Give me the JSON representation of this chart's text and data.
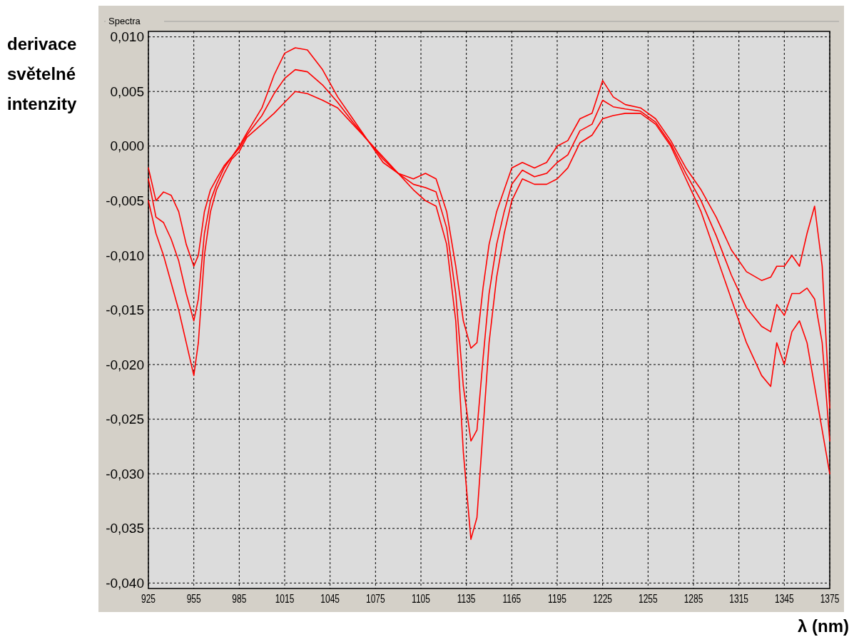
{
  "chart_data": {
    "type": "line",
    "title": "Spectra",
    "xlabel": "λ (nm)",
    "ylabel": "derivace světelné intenzity",
    "x": [
      925,
      930,
      935,
      940,
      945,
      950,
      955,
      958,
      962,
      966,
      970,
      975,
      980,
      985,
      990,
      1000,
      1008,
      1015,
      1022,
      1030,
      1040,
      1050,
      1060,
      1070,
      1080,
      1090,
      1100,
      1108,
      1115,
      1122,
      1128,
      1133,
      1138,
      1142,
      1146,
      1150,
      1155,
      1160,
      1165,
      1172,
      1180,
      1188,
      1195,
      1202,
      1210,
      1218,
      1225,
      1232,
      1240,
      1250,
      1260,
      1270,
      1280,
      1290,
      1300,
      1310,
      1320,
      1330,
      1336,
      1340,
      1345,
      1350,
      1355,
      1360,
      1365,
      1370,
      1375
    ],
    "series": [
      {
        "color": "#ff0000",
        "values": [
          -0.002,
          -0.005,
          -0.0042,
          -0.0045,
          -0.006,
          -0.009,
          -0.011,
          -0.01,
          -0.006,
          -0.004,
          -0.003,
          -0.0018,
          -0.001,
          0.0,
          0.0012,
          0.0035,
          0.0065,
          0.0085,
          0.009,
          0.0088,
          0.007,
          0.0045,
          0.0025,
          0.0005,
          -0.0015,
          -0.0025,
          -0.003,
          -0.0025,
          -0.003,
          -0.006,
          -0.011,
          -0.016,
          -0.0185,
          -0.018,
          -0.013,
          -0.009,
          -0.006,
          -0.004,
          -0.002,
          -0.0015,
          -0.002,
          -0.0015,
          0.0,
          0.0005,
          0.0025,
          0.003,
          0.006,
          0.0045,
          0.0038,
          0.0035,
          0.0025,
          0.0005,
          -0.002,
          -0.004,
          -0.0065,
          -0.0095,
          -0.0115,
          -0.0123,
          -0.012,
          -0.011,
          -0.011,
          -0.01,
          -0.011,
          -0.008,
          -0.0055,
          -0.011,
          -0.024
        ]
      },
      {
        "color": "#ff0000",
        "values": [
          -0.003,
          -0.0065,
          -0.007,
          -0.0085,
          -0.0105,
          -0.0135,
          -0.016,
          -0.014,
          -0.008,
          -0.005,
          -0.0035,
          -0.002,
          -0.001,
          -0.0002,
          0.001,
          0.0028,
          0.0048,
          0.0062,
          0.007,
          0.0068,
          0.0056,
          0.004,
          0.0022,
          0.0005,
          -0.0012,
          -0.0025,
          -0.0035,
          -0.0038,
          -0.0042,
          -0.0075,
          -0.0135,
          -0.022,
          -0.027,
          -0.026,
          -0.0195,
          -0.0135,
          -0.009,
          -0.006,
          -0.0035,
          -0.0022,
          -0.0028,
          -0.0025,
          -0.0015,
          -0.0008,
          0.0014,
          0.002,
          0.0042,
          0.0036,
          0.0034,
          0.0032,
          0.0022,
          0.0002,
          -0.0025,
          -0.005,
          -0.0082,
          -0.0118,
          -0.0148,
          -0.0165,
          -0.017,
          -0.0145,
          -0.0155,
          -0.0135,
          -0.0135,
          -0.013,
          -0.014,
          -0.018,
          -0.027
        ]
      },
      {
        "color": "#ff0000",
        "values": [
          -0.005,
          -0.008,
          -0.01,
          -0.0125,
          -0.015,
          -0.018,
          -0.021,
          -0.018,
          -0.01,
          -0.006,
          -0.004,
          -0.0025,
          -0.0012,
          -0.0005,
          0.0008,
          0.002,
          0.003,
          0.004,
          0.005,
          0.0048,
          0.0042,
          0.0035,
          0.002,
          0.0005,
          -0.001,
          -0.0025,
          -0.004,
          -0.005,
          -0.0055,
          -0.009,
          -0.016,
          -0.028,
          -0.036,
          -0.034,
          -0.026,
          -0.018,
          -0.012,
          -0.008,
          -0.005,
          -0.003,
          -0.0035,
          -0.0035,
          -0.003,
          -0.002,
          0.0003,
          0.001,
          0.0025,
          0.0028,
          0.003,
          0.003,
          0.002,
          0.0,
          -0.003,
          -0.006,
          -0.01,
          -0.014,
          -0.018,
          -0.021,
          -0.022,
          -0.018,
          -0.02,
          -0.017,
          -0.016,
          -0.018,
          -0.022,
          -0.026,
          -0.03
        ]
      }
    ],
    "xlim": [
      925,
      1375
    ],
    "xticks": [
      925,
      955,
      985,
      1015,
      1045,
      1075,
      1105,
      1135,
      1165,
      1195,
      1225,
      1255,
      1285,
      1315,
      1345,
      1375
    ],
    "ylim": [
      -0.0405,
      0.0105
    ],
    "yticks": [
      {
        "value": 0.01,
        "label": "0,010"
      },
      {
        "value": 0.005,
        "label": "0,005"
      },
      {
        "value": 0,
        "label": "0,000"
      },
      {
        "value": -0.005,
        "label": "-0,005"
      },
      {
        "value": -0.01,
        "label": "-0,010"
      },
      {
        "value": -0.015,
        "label": "-0,015"
      },
      {
        "value": -0.02,
        "label": "-0,020"
      },
      {
        "value": -0.025,
        "label": "-0,025"
      },
      {
        "value": -0.03,
        "label": "-0,030"
      },
      {
        "value": -0.035,
        "label": "-0,035"
      },
      {
        "value": -0.04,
        "label": "-0,040"
      }
    ],
    "grid": true
  }
}
